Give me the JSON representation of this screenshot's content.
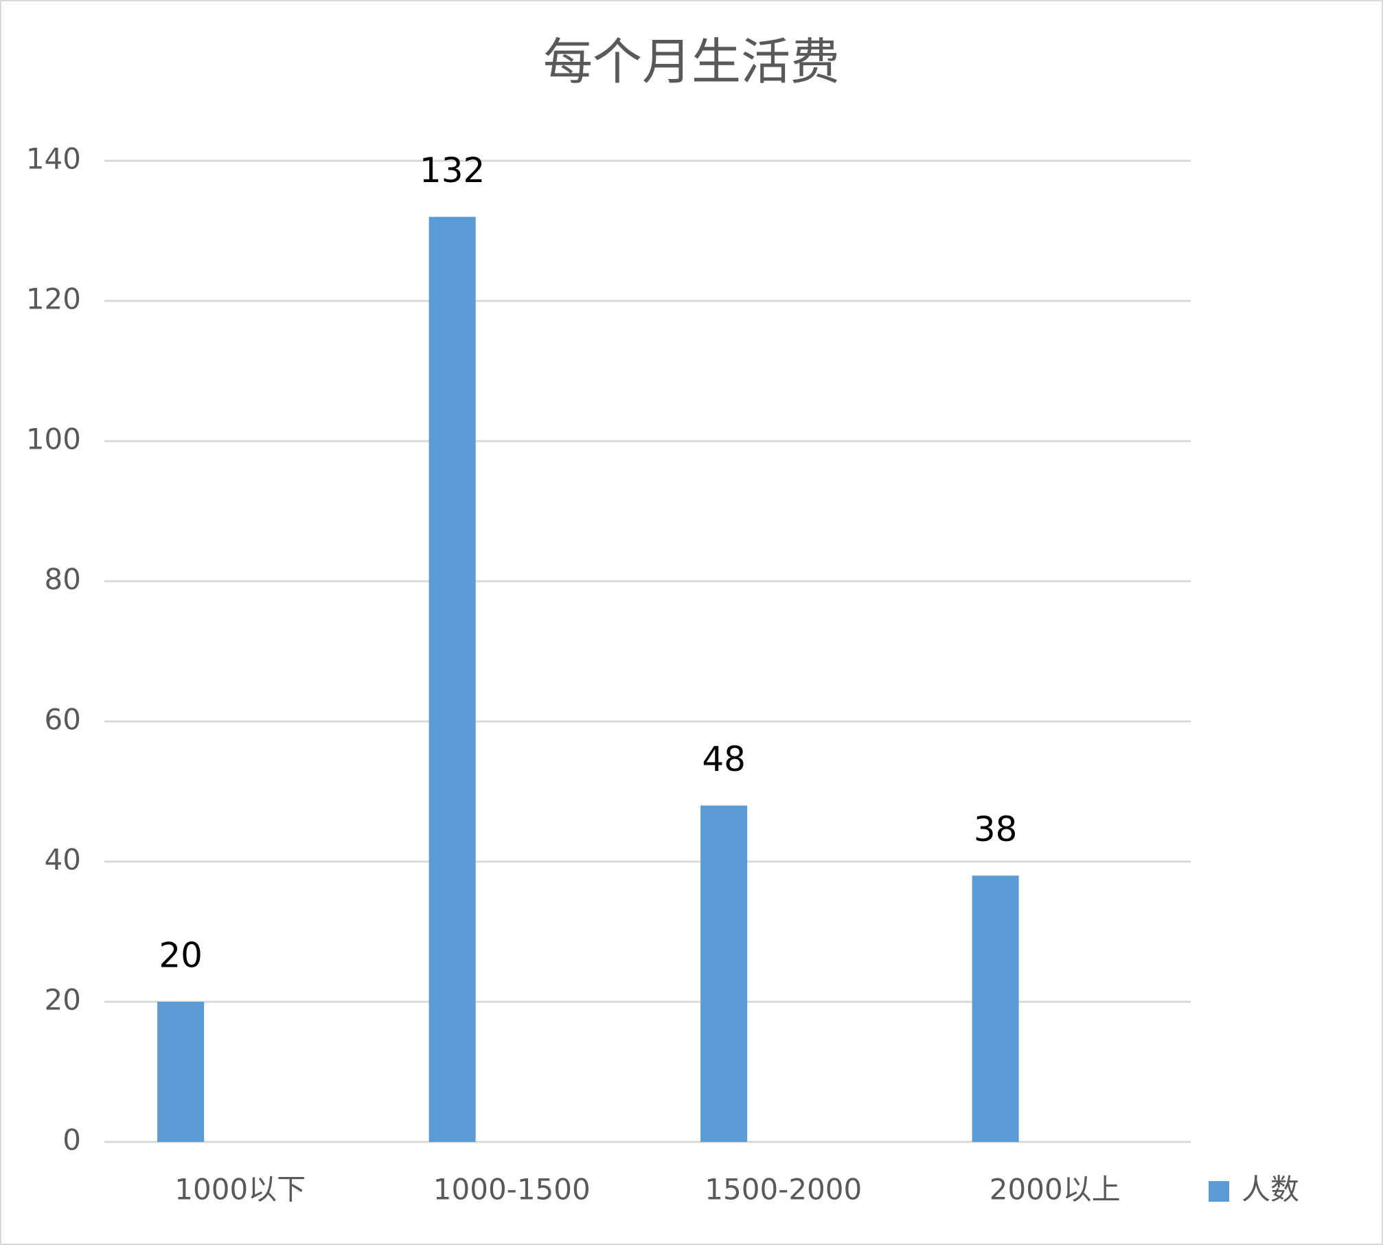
{
  "chart_data": {
    "type": "bar",
    "title": "每个月生活费",
    "categories": [
      "1000以下",
      "1000-1500",
      "1500-2000",
      "2000以上"
    ],
    "series": [
      {
        "name": "人数",
        "color": "#5b9bd5",
        "values": [
          20,
          132,
          48,
          38
        ]
      }
    ],
    "ylim": [
      0,
      140
    ],
    "yticks": [
      0,
      20,
      40,
      60,
      80,
      100,
      120,
      140
    ],
    "grid": true,
    "legend": "right"
  }
}
